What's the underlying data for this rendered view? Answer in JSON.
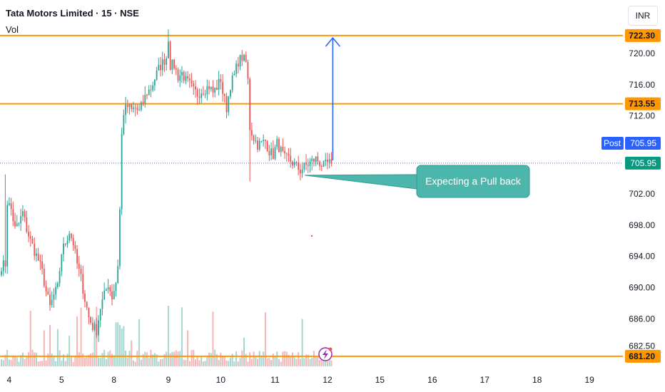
{
  "header": {
    "title": "Tata Motors Limited · 15 · NSE",
    "volume_label": "Vol",
    "currency": "INR"
  },
  "colors": {
    "up": "#26a69a",
    "down": "#ef5350",
    "level_line": "#ff9800",
    "arrow": "#2962ff",
    "post_badge": "#2962ff",
    "last_price_badge": "#089981",
    "callout": "#4db6ac"
  },
  "chart_data": {
    "type": "candlestick",
    "symbol": "Tata Motors Limited",
    "interval": "15",
    "exchange": "NSE",
    "y_ticks": [
      720.0,
      716.0,
      712.0,
      702.0,
      698.0,
      694.0,
      690.0,
      686.0,
      682.5
    ],
    "ylim": [
      680.5,
      724.5
    ],
    "x_ticks": [
      "4",
      "5",
      "8",
      "9",
      "10",
      "11",
      "12",
      "15",
      "16",
      "17",
      "18",
      "19"
    ],
    "horizontal_levels": [
      {
        "price": 722.3,
        "label": "722.30"
      },
      {
        "price": 713.55,
        "label": "713.55"
      },
      {
        "price": 681.2,
        "label": "681.20"
      }
    ],
    "current_price": {
      "price": 705.95,
      "label": "705.95",
      "post_label": "Post",
      "post_value": "705.95"
    },
    "annotation": {
      "text": "Expecting a Pull back",
      "anchor_price": 704.4
    },
    "arrow": {
      "from_price": 706.3,
      "to_price": 722.0
    },
    "price_anchors": [
      [
        0,
        692.8
      ],
      [
        2,
        693.0
      ],
      [
        3,
        701.0
      ],
      [
        5,
        700.0
      ],
      [
        7,
        697.5
      ],
      [
        9,
        698.2
      ],
      [
        11,
        699.6
      ],
      [
        13,
        697.5
      ],
      [
        15,
        696.0
      ],
      [
        17,
        694.7
      ],
      [
        19,
        693.5
      ],
      [
        21,
        692.0
      ],
      [
        23,
        689.5
      ],
      [
        25,
        687.5
      ],
      [
        27,
        689.0
      ],
      [
        29,
        690.0
      ],
      [
        31,
        694.5
      ],
      [
        33,
        695.8
      ],
      [
        35,
        697.2
      ],
      [
        37,
        695.7
      ],
      [
        39,
        693.0
      ],
      [
        41,
        691.2
      ],
      [
        43,
        688.5
      ],
      [
        45,
        686.2
      ],
      [
        47,
        685.0
      ],
      [
        49,
        684.5
      ],
      [
        51,
        687.5
      ],
      [
        53,
        689.0
      ],
      [
        55,
        690.5
      ],
      [
        57,
        688.8
      ],
      [
        59,
        690.7
      ],
      [
        60,
        693.0
      ],
      [
        61,
        700.0
      ],
      [
        62,
        709.5
      ],
      [
        63,
        712.5
      ],
      [
        65,
        713.2
      ],
      [
        67,
        712.7
      ],
      [
        69,
        713.0
      ],
      [
        71,
        712.5
      ],
      [
        73,
        713.8
      ],
      [
        75,
        715.0
      ],
      [
        77,
        715.5
      ],
      [
        79,
        716.8
      ],
      [
        81,
        718.0
      ],
      [
        83,
        718.8
      ],
      [
        85,
        719.5
      ],
      [
        86,
        722.0
      ],
      [
        87,
        718.5
      ],
      [
        89,
        718.5
      ],
      [
        91,
        717.0
      ],
      [
        93,
        717.5
      ],
      [
        95,
        716.5
      ],
      [
        97,
        716.0
      ],
      [
        99,
        715.2
      ],
      [
        101,
        714.8
      ],
      [
        103,
        715.2
      ],
      [
        105,
        715.5
      ],
      [
        107,
        715.8
      ],
      [
        109,
        715.0
      ],
      [
        111,
        715.7
      ],
      [
        113,
        716.7
      ],
      [
        114,
        715.0
      ],
      [
        116,
        713.0
      ],
      [
        118,
        716.0
      ],
      [
        120,
        717.2
      ],
      [
        122,
        719.0
      ],
      [
        124,
        719.5
      ],
      [
        126,
        718.8
      ],
      [
        127,
        716.5
      ],
      [
        128,
        710.5
      ],
      [
        130,
        709.2
      ],
      [
        132,
        708.3
      ],
      [
        134,
        708.5
      ],
      [
        136,
        708.8
      ],
      [
        138,
        707.5
      ],
      [
        140,
        707.0
      ],
      [
        142,
        708.5
      ],
      [
        144,
        707.5
      ],
      [
        146,
        706.5
      ],
      [
        148,
        706.5
      ],
      [
        150,
        706.0
      ],
      [
        152,
        705.5
      ],
      [
        154,
        705.0
      ],
      [
        156,
        705.5
      ],
      [
        158,
        705.8
      ],
      [
        160,
        706.2
      ],
      [
        162,
        706.5
      ],
      [
        164,
        706.0
      ],
      [
        166,
        705.5
      ],
      [
        168,
        705.9
      ],
      [
        170,
        705.95
      ]
    ]
  }
}
